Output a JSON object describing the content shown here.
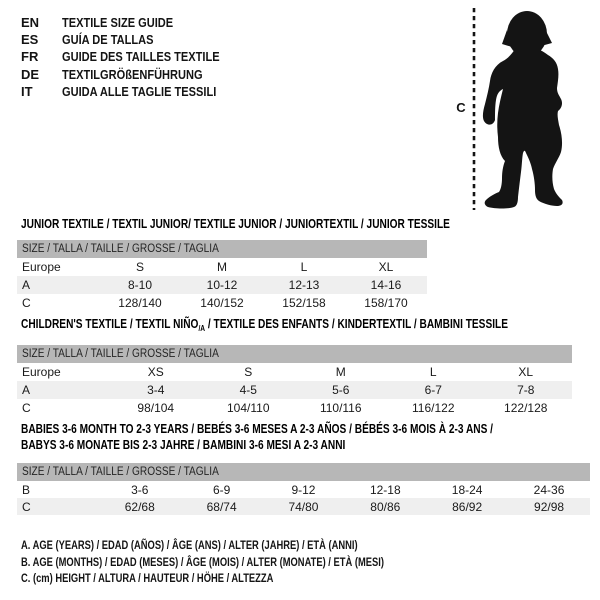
{
  "colors": {
    "ink": "#141414",
    "header_bar_gray": "#b7b7b7",
    "shaded_row_gray": "#efefef"
  },
  "languages": [
    {
      "code": "EN",
      "label": "TEXTILE SIZE GUIDE"
    },
    {
      "code": "ES",
      "label": "GUÍA DE TALLAS"
    },
    {
      "code": "FR",
      "label": "GUIDE DES TAILLES TEXTILE"
    },
    {
      "code": "DE",
      "label": "TEXTILGRÖßENFÜHRUNG"
    },
    {
      "code": "IT",
      "label": "GUIDA ALLE TAGLIE TESSILI"
    }
  ],
  "figure": {
    "measure_label": "C",
    "depicts": "toddler-silhouette"
  },
  "tables": [
    {
      "name": "junior-textile",
      "title_lines": [
        [
          {
            "text": "JUNIOR TEXTILE / TEXTIL JUNIOR/ TEXTILE JUNIOR / JUNIORTEXTIL / JUNIOR TESSILE",
            "sub": false
          }
        ]
      ],
      "size_header": "SIZE / TALLA / TAILLE / GRÖSSE / TAGLIA",
      "rows": [
        {
          "label": "Europe",
          "shaded": false,
          "cells": [
            "S",
            "M",
            "L",
            "XL"
          ]
        },
        {
          "label": "A",
          "shaded": true,
          "cells": [
            "8-10",
            "10-12",
            "12-13",
            "14-16"
          ]
        },
        {
          "label": "C",
          "shaded": false,
          "cells": [
            "128/140",
            "140/152",
            "152/158",
            "158/170"
          ]
        }
      ]
    },
    {
      "name": "childrens-textile",
      "title_lines": [
        [
          {
            "text": "CHILDREN'S TEXTILE / TEXTIL NIÑO",
            "sub": false
          },
          {
            "text": "/A",
            "sub": true
          },
          {
            "text": " / TEXTILE DES ENFANTS / KINDERTEXTIL / BAMBINI TESSILE",
            "sub": false
          }
        ]
      ],
      "size_header": "SIZE / TALLA / TAILLE / GRÖSSE / TAGLIA",
      "rows": [
        {
          "label": "Europe",
          "shaded": false,
          "cells": [
            "XS",
            "S",
            "M",
            "L",
            "XL"
          ]
        },
        {
          "label": "A",
          "shaded": true,
          "cells": [
            "3-4",
            "4-5",
            "5-6",
            "6-7",
            "7-8"
          ]
        },
        {
          "label": "C",
          "shaded": false,
          "cells": [
            "98/104",
            "104/110",
            "110/116",
            "116/122",
            "122/128"
          ]
        }
      ]
    },
    {
      "name": "babies-textile",
      "title_lines": [
        [
          {
            "text": "BABIES 3-6 MONTH TO 2-3 YEARS / BEBÉS 3-6 MESES A 2-3 AÑOS / BÉBÉS 3-6 MOIS À 2-3 ANS /",
            "sub": false
          }
        ],
        [
          {
            "text": "BABYS 3-6 MONATE BIS 2-3 JAHRE / BAMBINI 3-6 MESI A 2-3 ANNI",
            "sub": false
          }
        ]
      ],
      "size_header": "SIZE / TALLA / TAILLE / GRÖSSE / TAGLIA",
      "rows": [
        {
          "label": "B",
          "shaded": false,
          "cells": [
            "3-6",
            "6-9",
            "9-12",
            "12-18",
            "18-24",
            "24-36"
          ]
        },
        {
          "label": "C",
          "shaded": true,
          "cells": [
            "62/68",
            "68/74",
            "74/80",
            "80/86",
            "86/92",
            "92/98"
          ]
        }
      ]
    }
  ],
  "footnotes": [
    "A. AGE (YEARS) / EDAD (AÑOS) / ÂGE (ANS) / ALTER (JAHRE) / ETÀ (ANNI)",
    "B. AGE (MONTHS) / EDAD (MESES) / ÂGE (MOIS) / ALTER (MONATE) / ETÀ (MESI)",
    "C. (cm) HEIGHT / ALTURA / HAUTEUR / HÖHE / ALTEZZA"
  ]
}
